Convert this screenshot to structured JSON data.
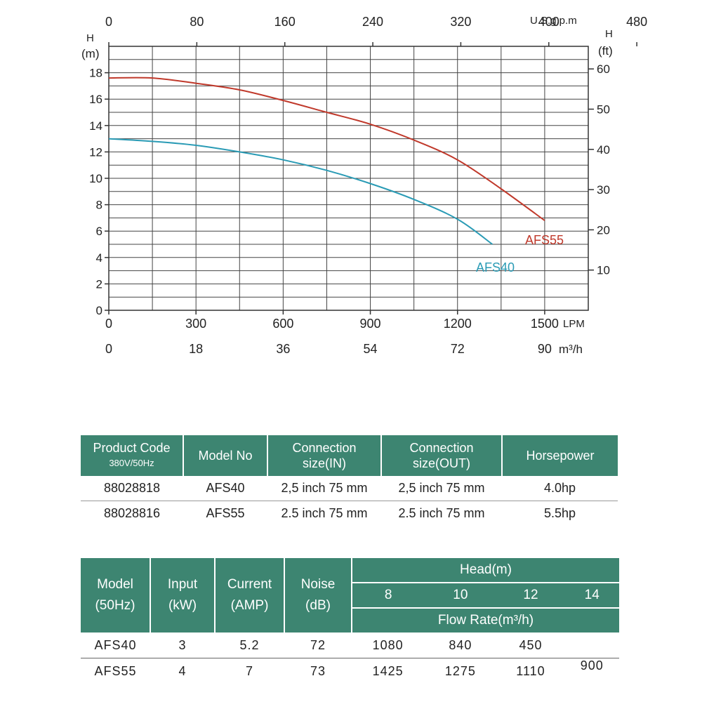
{
  "chart_data": {
    "type": "line",
    "x_axis_bottom_lpm": {
      "unit": "LPM",
      "ticks": [
        "0",
        "300",
        "600",
        "900",
        "1200",
        "1500"
      ],
      "range": [
        0,
        1650
      ]
    },
    "x_axis_bottom_m3h": {
      "unit": "m³/h",
      "ticks": [
        "0",
        "18",
        "36",
        "54",
        "72",
        "90"
      ]
    },
    "x_axis_top_usgpm": {
      "unit": "U.S.g.p.m",
      "ticks": [
        "0",
        "80",
        "160",
        "240",
        "320",
        "400",
        "480"
      ]
    },
    "y_axis_left": {
      "label": "H",
      "unit": "(m)",
      "ticks": [
        "0",
        "2",
        "4",
        "6",
        "8",
        "10",
        "12",
        "14",
        "16",
        "18"
      ],
      "range": [
        0,
        20
      ]
    },
    "y_axis_right": {
      "label": "H",
      "unit": "(ft)",
      "ticks": [
        "10",
        "20",
        "30",
        "40",
        "50",
        "60"
      ]
    },
    "grid": true,
    "series": [
      {
        "name": "AFS55",
        "color": "#c0392b",
        "points": [
          [
            0,
            17.6
          ],
          [
            150,
            17.6
          ],
          [
            300,
            17.2
          ],
          [
            450,
            16.7
          ],
          [
            600,
            15.9
          ],
          [
            750,
            15.0
          ],
          [
            900,
            14.1
          ],
          [
            1050,
            12.9
          ],
          [
            1200,
            11.4
          ],
          [
            1350,
            9.2
          ],
          [
            1500,
            6.8
          ]
        ]
      },
      {
        "name": "AFS40",
        "color": "#2a9bb5",
        "points": [
          [
            0,
            13.0
          ],
          [
            150,
            12.8
          ],
          [
            300,
            12.5
          ],
          [
            450,
            12.0
          ],
          [
            600,
            11.4
          ],
          [
            750,
            10.6
          ],
          [
            900,
            9.6
          ],
          [
            1050,
            8.4
          ],
          [
            1200,
            6.9
          ],
          [
            1320,
            5.0
          ]
        ]
      }
    ]
  },
  "spec_table": {
    "headers": {
      "product_code": "Product Code",
      "voltage": "380V/50Hz",
      "model_no": "Model No",
      "conn_in_1": "Connection",
      "conn_in_2": "size(IN)",
      "conn_out_1": "Connection",
      "conn_out_2": "size(OUT)",
      "horsepower": "Horsepower"
    },
    "rows": [
      {
        "code": "88028818",
        "model": "AFS40",
        "in": "2,5 inch  75 mm",
        "out": "2,5 inch  75 mm",
        "hp": "4.0hp"
      },
      {
        "code": "88028816",
        "model": "AFS55",
        "in": "2.5 inch  75 mm",
        "out": "2.5 inch  75 mm",
        "hp": "5.5hp"
      }
    ]
  },
  "perf_table": {
    "headers": {
      "model_1": "Model",
      "model_2": "(50Hz)",
      "input_1": "Input",
      "input_2": "(kW)",
      "current_1": "Current",
      "current_2": "(AMP)",
      "noise_1": "Noise",
      "noise_2": "(dB)",
      "head": "Head(m)",
      "heads": [
        "8",
        "10",
        "12",
        "14"
      ],
      "flow": "Flow Rate(m³/h)"
    },
    "rows": [
      {
        "model": "AFS40",
        "input": "3",
        "current": "5.2",
        "noise": "72",
        "f8": "1080",
        "f10": "840",
        "f12": "450",
        "f14": ""
      },
      {
        "model": "AFS55",
        "input": "4",
        "current": "7",
        "noise": "73",
        "f8": "1425",
        "f10": "1275",
        "f12": "1110",
        "f14": "900"
      }
    ]
  }
}
